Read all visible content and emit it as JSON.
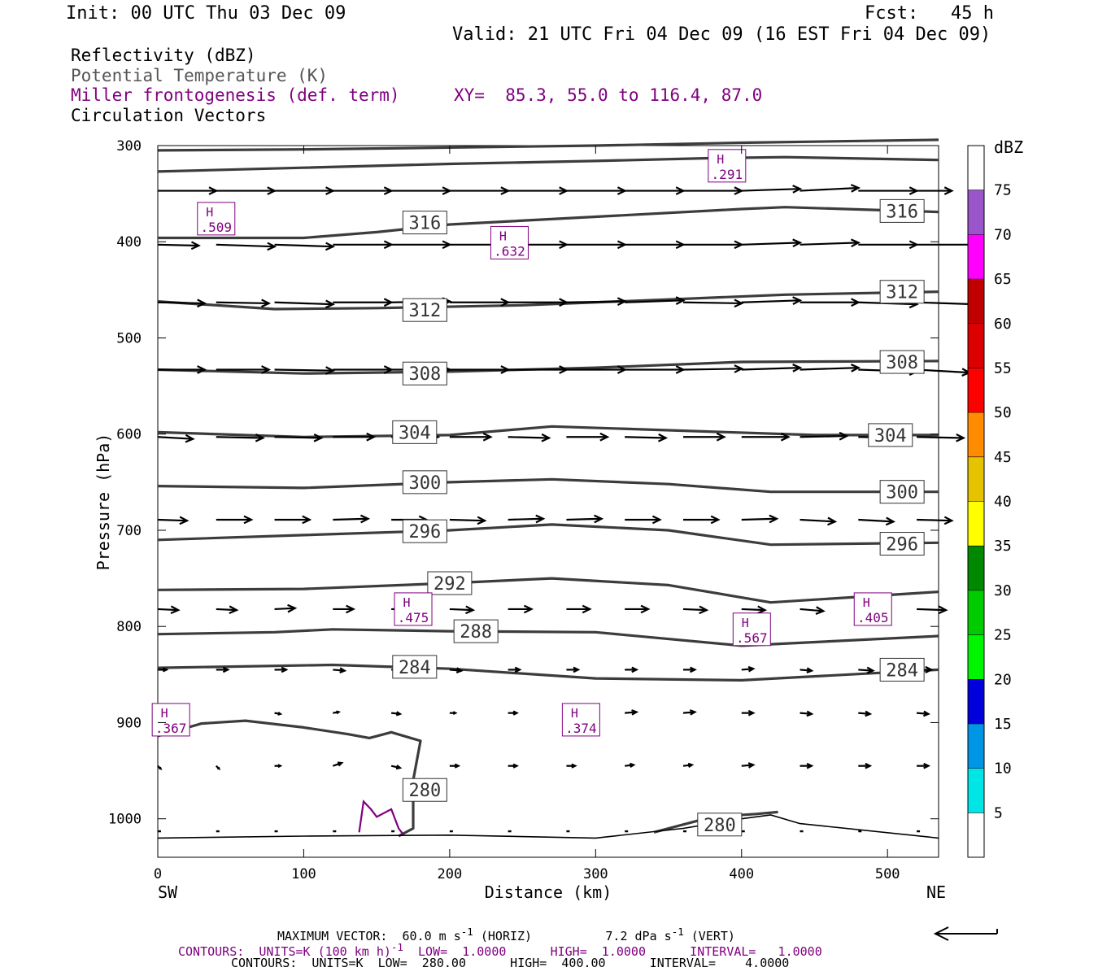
{
  "header": {
    "init": "Init: 00 UTC Thu 03 Dec 09",
    "fcst": "Fcst:   45 h",
    "valid": "Valid: 21 UTC Fri 04 Dec 09 (16 EST Fri 04 Dec 09)"
  },
  "titles": {
    "reflectivity": "Reflectivity (dBZ)",
    "theta": "Potential Temperature (K)",
    "miller": "Miller frontogenesis (def. term)",
    "xy": "XY=  85.3, 55.0 to 116.4, 87.0",
    "vectors": "Circulation Vectors"
  },
  "colors": {
    "purple": "#800080",
    "contour": "#3c3c3c",
    "terrain": "#000000"
  },
  "footer": {
    "max_vector_label": "MAXIMUM VECTOR:  60.0 m s",
    "max_vector_horiz": " (HORIZ)",
    "max_vector_vert_val": "7.2 dPa s",
    "max_vector_vert": " (VERT)",
    "contours1_a": "CONTOURS:  UNITS=K (100 km h)",
    "contours1_b": "  LOW=  1.0000      HIGH=  1.0000      INTERVAL=   1.0000",
    "contours2": "CONTOURS:  UNITS=K  LOW=  280.00      HIGH=  400.00      INTERVAL=    4.0000"
  },
  "chart_data": {
    "type": "cross-section",
    "xlabel": "Distance (km)",
    "ylabel": "Pressure (hPa)",
    "xlim": [
      0,
      535
    ],
    "ylim": [
      300,
      1040
    ],
    "y_inverted": true,
    "x_ticks": [
      0,
      100,
      200,
      300,
      400,
      500
    ],
    "y_ticks": [
      300,
      400,
      500,
      600,
      700,
      800,
      900,
      1000
    ],
    "left_end_label": "SW",
    "right_end_label": "NE",
    "colorbar": {
      "unit": "dBZ",
      "labels": [
        "5",
        "10",
        "15",
        "20",
        "25",
        "30",
        "35",
        "40",
        "45",
        "50",
        "55",
        "60",
        "65",
        "70",
        "75"
      ],
      "colors": [
        "#ffffff",
        "#00e5e5",
        "#0096e6",
        "#0000dc",
        "#00f500",
        "#00cc00",
        "#008800",
        "#ffff00",
        "#e6c300",
        "#ff8c00",
        "#ff0000",
        "#dd0000",
        "#c00000",
        "#ff00ff",
        "#9955c9",
        "#ffffff"
      ]
    },
    "theta_contours": [
      {
        "value": 316,
        "points": [
          [
            0,
            305
          ],
          [
            100,
            304
          ],
          [
            200,
            302
          ],
          [
            300,
            300
          ],
          [
            400,
            297
          ],
          [
            535,
            294
          ]
        ]
      },
      {
        "value": 316,
        "points": [
          [
            0,
            327
          ],
          [
            100,
            323
          ],
          [
            200,
            319
          ],
          [
            300,
            316
          ],
          [
            380,
            313
          ],
          [
            430,
            312
          ],
          [
            535,
            315
          ]
        ]
      },
      {
        "value": 316,
        "points": [
          [
            0,
            396
          ],
          [
            100,
            396
          ],
          [
            150,
            390
          ],
          [
            200,
            382
          ],
          [
            300,
            374
          ],
          [
            400,
            366
          ],
          [
            430,
            364
          ],
          [
            535,
            369
          ]
        ]
      },
      {
        "value": 312,
        "points": [
          [
            0,
            462
          ],
          [
            80,
            470
          ],
          [
            150,
            469
          ],
          [
            250,
            466
          ],
          [
            350,
            460
          ],
          [
            430,
            455
          ],
          [
            535,
            452
          ]
        ]
      },
      {
        "value": 308,
        "points": [
          [
            0,
            533
          ],
          [
            100,
            537
          ],
          [
            200,
            535
          ],
          [
            300,
            531
          ],
          [
            400,
            525
          ],
          [
            535,
            524
          ]
        ]
      },
      {
        "value": 304,
        "points": [
          [
            0,
            598
          ],
          [
            100,
            603
          ],
          [
            200,
            601
          ],
          [
            270,
            592
          ],
          [
            350,
            596
          ],
          [
            450,
            601
          ],
          [
            535,
            601
          ]
        ]
      },
      {
        "value": 300,
        "points": [
          [
            0,
            654
          ],
          [
            100,
            656
          ],
          [
            200,
            650
          ],
          [
            270,
            647
          ],
          [
            350,
            652
          ],
          [
            420,
            660
          ],
          [
            535,
            660
          ]
        ]
      },
      {
        "value": 296,
        "points": [
          [
            0,
            710
          ],
          [
            100,
            705
          ],
          [
            200,
            700
          ],
          [
            270,
            694
          ],
          [
            350,
            700
          ],
          [
            420,
            715
          ],
          [
            535,
            713
          ]
        ]
      },
      {
        "value": 292,
        "points": [
          [
            0,
            762
          ],
          [
            100,
            761
          ],
          [
            200,
            755
          ],
          [
            270,
            750
          ],
          [
            350,
            757
          ],
          [
            420,
            775
          ],
          [
            535,
            764
          ]
        ]
      },
      {
        "value": 288,
        "points": [
          [
            0,
            808
          ],
          [
            80,
            806
          ],
          [
            120,
            803
          ],
          [
            200,
            805
          ],
          [
            300,
            806
          ],
          [
            400,
            820
          ],
          [
            535,
            810
          ]
        ]
      },
      {
        "value": 284,
        "points": [
          [
            0,
            843
          ],
          [
            120,
            840
          ],
          [
            200,
            844
          ],
          [
            300,
            854
          ],
          [
            400,
            856
          ],
          [
            535,
            845
          ]
        ]
      },
      {
        "value": 280,
        "points": [
          [
            0,
            914
          ],
          [
            30,
            901
          ],
          [
            60,
            898
          ],
          [
            100,
            905
          ],
          [
            130,
            912
          ],
          [
            145,
            916
          ],
          [
            160,
            910
          ],
          [
            180,
            919
          ],
          [
            175,
            960
          ],
          [
            175,
            1010
          ],
          [
            165,
            1018
          ]
        ]
      },
      {
        "value": 280,
        "points": [
          [
            340,
            1014
          ],
          [
            380,
            998
          ],
          [
            410,
            995
          ],
          [
            425,
            993
          ]
        ]
      }
    ],
    "theta_labels": [
      {
        "text": "316",
        "x": 183,
        "p": 380
      },
      {
        "text": "316",
        "x": 510,
        "p": 368
      },
      {
        "text": "312",
        "x": 183,
        "p": 471
      },
      {
        "text": "312",
        "x": 510,
        "p": 452
      },
      {
        "text": "308",
        "x": 183,
        "p": 537
      },
      {
        "text": "308",
        "x": 510,
        "p": 525
      },
      {
        "text": "304",
        "x": 176,
        "p": 598
      },
      {
        "text": "304",
        "x": 502,
        "p": 601
      },
      {
        "text": "300",
        "x": 183,
        "p": 650
      },
      {
        "text": "300",
        "x": 510,
        "p": 660
      },
      {
        "text": "296",
        "x": 183,
        "p": 701
      },
      {
        "text": "296",
        "x": 510,
        "p": 714
      },
      {
        "text": "292",
        "x": 200,
        "p": 755
      },
      {
        "text": "288",
        "x": 218,
        "p": 805
      },
      {
        "text": "284",
        "x": 176,
        "p": 842
      },
      {
        "text": "284",
        "x": 510,
        "p": 845
      },
      {
        "text": "280",
        "x": 183,
        "p": 970
      },
      {
        "text": "280",
        "x": 385,
        "p": 1006
      }
    ],
    "frontogenesis_highs": [
      {
        "label": "H",
        "value": ".509",
        "x": 40,
        "p": 376
      },
      {
        "label": "H",
        "value": ".291",
        "x": 390,
        "p": 321
      },
      {
        "label": "H",
        "value": ".632",
        "x": 241,
        "p": 401
      },
      {
        "label": "H",
        "value": ".475",
        "x": 175,
        "p": 782
      },
      {
        "label": "H",
        "value": ".567",
        "x": 407,
        "p": 803
      },
      {
        "label": "H",
        "value": ".405",
        "x": 490,
        "p": 782
      },
      {
        "label": "H",
        "value": ".374",
        "x": 290,
        "p": 897
      },
      {
        "label": "H",
        "value": ".367",
        "x": 9,
        "p": 897
      }
    ],
    "frontogenesis_contour": [
      [
        138,
        1014
      ],
      [
        141,
        982
      ],
      [
        146,
        990
      ],
      [
        150,
        998
      ],
      [
        160,
        990
      ],
      [
        165,
        1010
      ],
      [
        168,
        1016
      ]
    ],
    "terrain": [
      [
        0,
        1020
      ],
      [
        100,
        1018
      ],
      [
        200,
        1017
      ],
      [
        300,
        1020
      ],
      [
        360,
        1010
      ],
      [
        400,
        1000
      ],
      [
        420,
        996
      ],
      [
        440,
        1005
      ],
      [
        535,
        1020
      ]
    ],
    "vector_rows": [
      {
        "p": 347,
        "x": [
          0,
          40,
          80,
          120,
          160,
          200,
          240,
          280,
          320,
          360,
          400,
          440,
          480,
          520
        ],
        "u": [
          1,
          1,
          1,
          1,
          1,
          1,
          1,
          1,
          1,
          1,
          1,
          1,
          1,
          0.6
        ],
        "w": [
          0,
          0,
          0,
          0,
          0,
          0,
          0,
          0,
          0,
          0,
          0.2,
          0.3,
          0,
          0
        ]
      },
      {
        "p": 403,
        "x": [
          0,
          40,
          80,
          120,
          160,
          200,
          240,
          280,
          320,
          360,
          400,
          440,
          480,
          520
        ],
        "u": [
          0.7,
          1,
          1,
          1,
          1,
          1,
          1,
          1,
          1,
          1,
          1,
          1,
          1,
          1
        ],
        "w": [
          -0.1,
          -0.2,
          -0.2,
          0,
          0,
          0,
          0,
          0,
          0,
          0,
          0.2,
          0.2,
          0,
          0
        ]
      },
      {
        "p": 463,
        "x": [
          0,
          40,
          80,
          120,
          160,
          200,
          240,
          280,
          320,
          360,
          400,
          440,
          480,
          520
        ],
        "u": [
          0.8,
          0.9,
          1,
          1,
          1,
          1,
          1,
          1,
          1,
          1,
          1,
          1,
          1,
          1
        ],
        "w": [
          -0.1,
          -0.1,
          -0.2,
          0,
          0.1,
          0,
          0,
          0.1,
          0.2,
          -0.1,
          0.2,
          0,
          -0.2,
          -0.2
        ]
      },
      {
        "p": 533,
        "x": [
          0,
          40,
          80,
          120,
          160,
          200,
          240,
          280,
          320,
          360,
          400,
          440,
          480,
          520
        ],
        "u": [
          0.8,
          0.9,
          1,
          1,
          1,
          1,
          1,
          1,
          1,
          1,
          1,
          1,
          1,
          0.9
        ],
        "w": [
          0,
          0,
          -0.1,
          0,
          0,
          0,
          0,
          0,
          0,
          0.1,
          0.2,
          0.2,
          -0.2,
          -0.3
        ]
      },
      {
        "p": 603,
        "x": [
          0,
          40,
          80,
          120,
          160,
          200,
          240,
          280,
          320,
          360,
          400,
          440,
          480,
          520
        ],
        "u": [
          0.6,
          0.8,
          0.8,
          0.7,
          0.8,
          0.7,
          0.7,
          0.7,
          0.7,
          0.7,
          0.8,
          0.8,
          0.8,
          0.8
        ],
        "w": [
          -0.2,
          -0.1,
          -0.1,
          0,
          0,
          0,
          -0.1,
          0,
          -0.1,
          0,
          0,
          0.1,
          -0.1,
          -0.1
        ]
      },
      {
        "p": 689,
        "x": [
          0,
          40,
          80,
          120,
          160,
          200,
          240,
          280,
          320,
          360,
          400,
          440,
          480,
          520
        ],
        "u": [
          0.5,
          0.6,
          0.6,
          0.6,
          0.6,
          0.6,
          0.6,
          0.6,
          0.6,
          0.6,
          0.6,
          0.6,
          0.6,
          0.6
        ],
        "w": [
          -0.1,
          0,
          0,
          0.1,
          0,
          -0.1,
          0.1,
          0.1,
          0,
          0,
          0.1,
          -0.2,
          -0.2,
          -0.1
        ]
      },
      {
        "p": 782,
        "x": [
          0,
          40,
          80,
          120,
          160,
          200,
          240,
          280,
          320,
          360,
          400,
          440,
          480,
          520
        ],
        "u": [
          0.35,
          0.35,
          0.35,
          0.35,
          0.4,
          0.4,
          0.4,
          0.4,
          0.4,
          0.4,
          0.4,
          0.4,
          0.5,
          0.5
        ],
        "w": [
          -0.1,
          -0.1,
          0.1,
          0,
          0,
          -0.1,
          0,
          0,
          0,
          -0.1,
          -0.1,
          -0.2,
          -0.2,
          -0.1
        ]
      },
      {
        "p": 845,
        "x": [
          0,
          40,
          80,
          120,
          160,
          200,
          240,
          280,
          320,
          360,
          400,
          440,
          480,
          520
        ],
        "u": [
          0.15,
          0.2,
          0.2,
          0.2,
          0.2,
          0.2,
          0.2,
          0.2,
          0.2,
          0.2,
          0.2,
          0.2,
          0.25,
          0.25
        ],
        "w": [
          0,
          0,
          0,
          -0.1,
          0,
          -0.1,
          0,
          0,
          0,
          0,
          0.1,
          -0.1,
          -0.1,
          0
        ]
      },
      {
        "p": 890,
        "x": [
          80,
          120,
          160,
          200,
          240,
          280,
          320,
          360,
          400,
          440,
          480,
          520
        ],
        "u": [
          0.1,
          0.1,
          0.15,
          0.1,
          0.15,
          0.2,
          0.2,
          0.2,
          0.2,
          0.2,
          0.2,
          0.2
        ],
        "w": [
          -0.1,
          0.1,
          -0.1,
          0,
          0,
          0,
          0.1,
          0.1,
          0,
          -0.1,
          -0.1,
          -0.1
        ]
      },
      {
        "p": 945,
        "x": [
          0,
          40,
          80,
          120,
          160,
          200,
          240,
          280,
          320,
          360,
          400,
          440,
          480,
          520
        ],
        "u": [
          0.05,
          0.05,
          0.1,
          0.15,
          0.15,
          0.15,
          0.15,
          0.15,
          0.15,
          0.15,
          0.2,
          0.2,
          0.2,
          0.2
        ],
        "w": [
          -0.3,
          -0.3,
          0,
          0.3,
          -0.2,
          0,
          0,
          0,
          0.1,
          0.1,
          0.1,
          0,
          0,
          0
        ]
      },
      {
        "p": 1013,
        "x": [
          0,
          40,
          80,
          120,
          160,
          200,
          240,
          280,
          320,
          360,
          400,
          440,
          480,
          520
        ],
        "u": [
          0.05,
          0.05,
          0.05,
          0.05,
          0.05,
          0.05,
          0.05,
          0.05,
          0.05,
          0.05,
          0.05,
          0.05,
          0.05,
          0.05
        ],
        "w": [
          0,
          0,
          0,
          0,
          0,
          0,
          0,
          0,
          0,
          0,
          0,
          0,
          0,
          0
        ]
      }
    ]
  }
}
